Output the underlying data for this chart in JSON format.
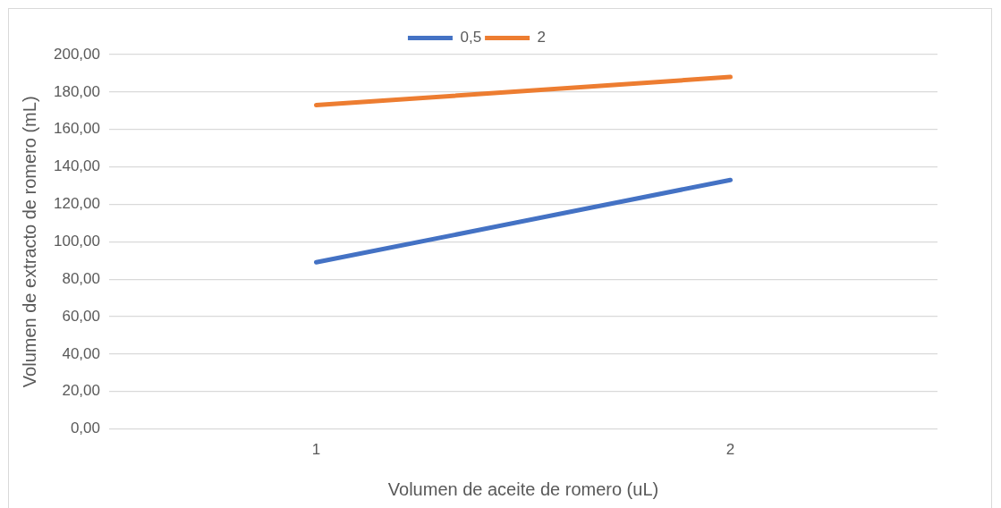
{
  "chart_data": {
    "type": "line",
    "xlabel": "Volumen de aceite de romero (uL)",
    "ylabel": "Volumen de extracto de romero (mL)",
    "categories": [
      "1",
      "2"
    ],
    "series": [
      {
        "name": "0,5",
        "color": "#4472c4",
        "values": [
          89,
          133
        ]
      },
      {
        "name": "2",
        "color": "#ed7d31",
        "values": [
          173,
          188
        ]
      }
    ],
    "ylim": [
      0,
      200
    ],
    "yticks": [
      {
        "value": 0,
        "label": "0,00"
      },
      {
        "value": 20,
        "label": "20,00"
      },
      {
        "value": 40,
        "label": "40,00"
      },
      {
        "value": 60,
        "label": "60,00"
      },
      {
        "value": 80,
        "label": "80,00"
      },
      {
        "value": 100,
        "label": "100,00"
      },
      {
        "value": 120,
        "label": "120,00"
      },
      {
        "value": 140,
        "label": "140,00"
      },
      {
        "value": 160,
        "label": "160,00"
      },
      {
        "value": 180,
        "label": "180,00"
      },
      {
        "value": 200,
        "label": "200,00"
      }
    ],
    "grid": "y",
    "legend": "top",
    "marker": "none",
    "line_style": "solid"
  }
}
